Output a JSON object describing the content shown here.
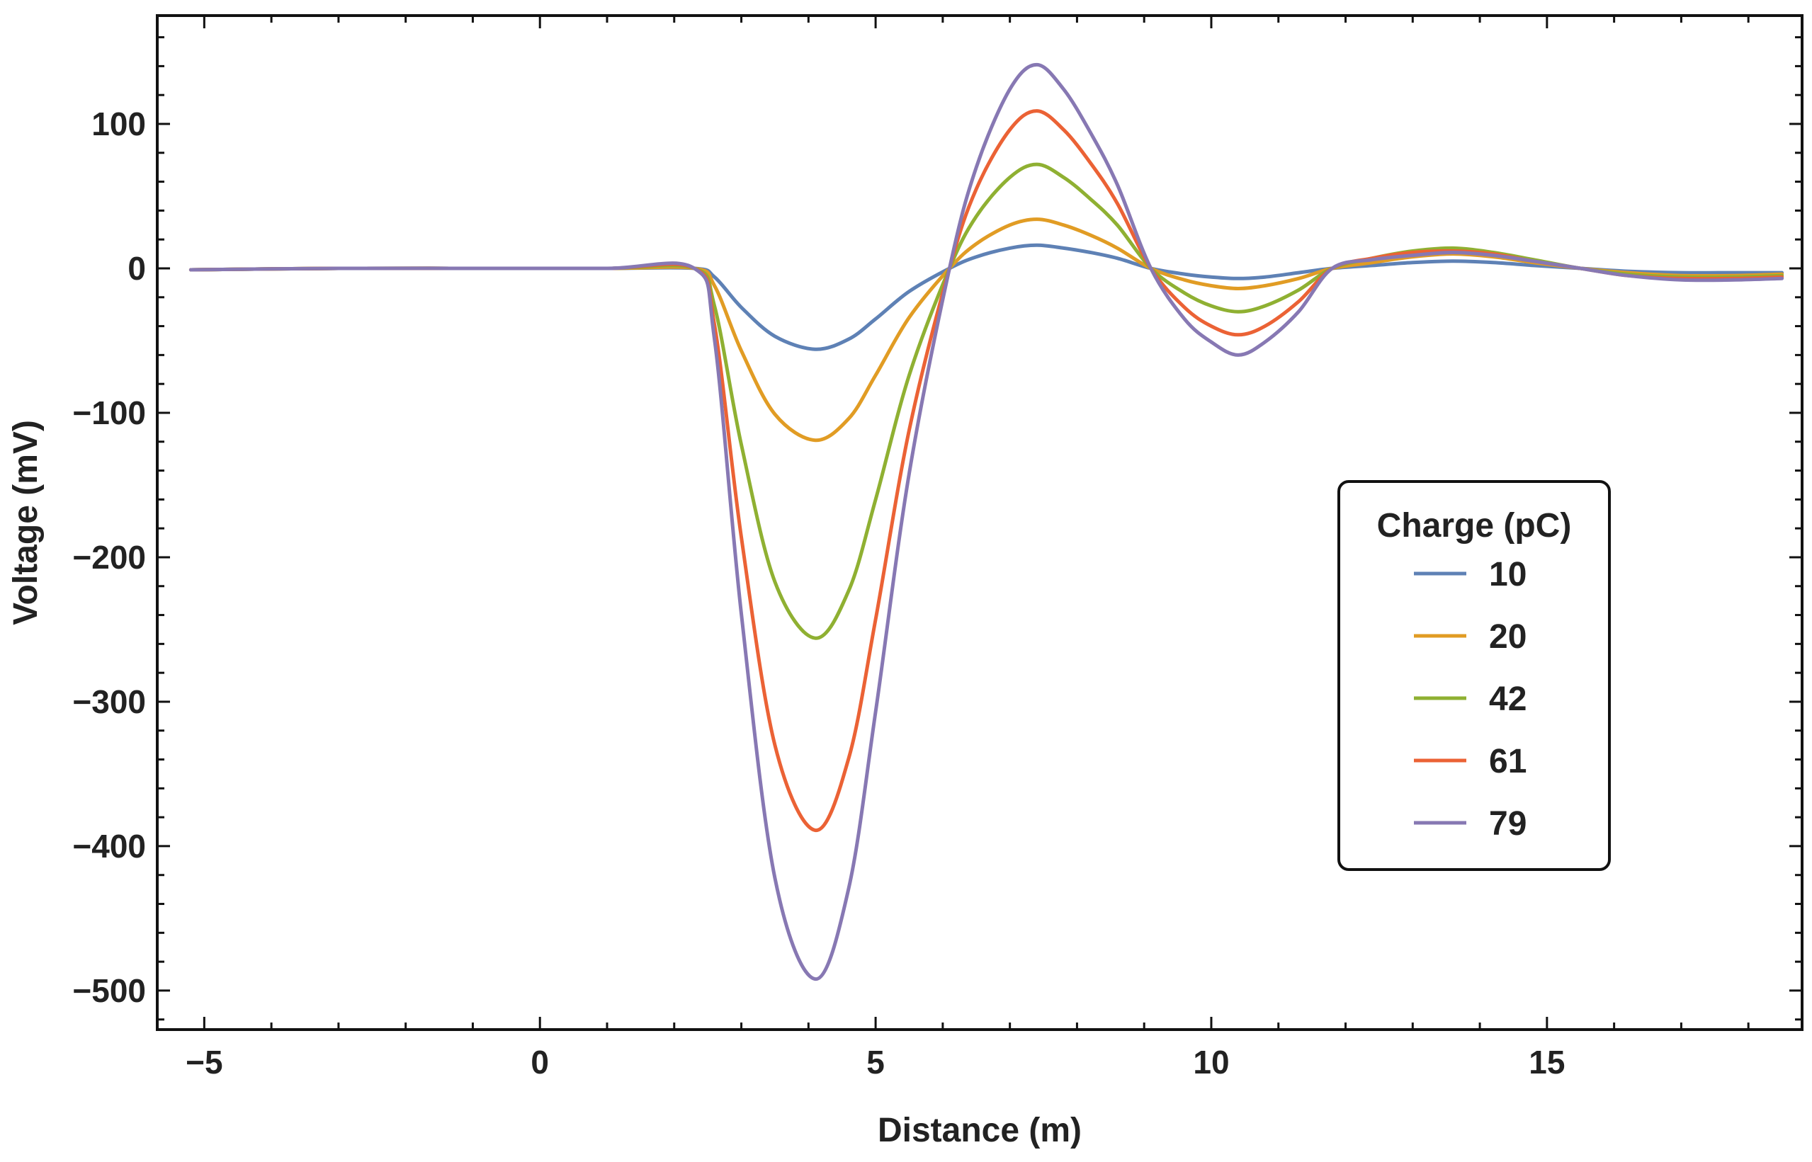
{
  "chart_data": {
    "type": "line",
    "xlabel": "Distance (m)",
    "ylabel": "Voltage (mV)",
    "xlim": [
      -5.7,
      18.8
    ],
    "ylim": [
      -527,
      175
    ],
    "x_ticks": [
      -5,
      0,
      5,
      10,
      15
    ],
    "x_tick_labels": [
      "-5",
      "0",
      "5",
      "10",
      "15"
    ],
    "y_ticks": [
      100,
      0,
      -100,
      -200,
      -300,
      -400,
      -500
    ],
    "y_tick_labels": [
      "100",
      "0",
      "-100",
      "-200",
      "-300",
      "-400",
      "-500"
    ],
    "grid": false,
    "legend": {
      "title": "Charge (pC)",
      "position": "right"
    },
    "x": [
      -5.2,
      -3,
      -1,
      1,
      2.3,
      2.6,
      3,
      3.5,
      4.1,
      4.6,
      5,
      5.5,
      6.1,
      6.5,
      7,
      7.4,
      7.8,
      8.2,
      8.6,
      9.1,
      9.6,
      10.0,
      10.4,
      10.8,
      11.3,
      11.8,
      12.4,
      13.0,
      13.6,
      14.2,
      14.8,
      15.5,
      16.2,
      17.0,
      17.8,
      18.5
    ],
    "series": [
      {
        "name": "10",
        "color": "#5e81b5",
        "values": [
          -1,
          0,
          0,
          0,
          0,
          -6,
          -27,
          -47,
          -56,
          -49,
          -35,
          -16,
          0,
          8,
          14,
          16,
          14,
          11,
          7,
          0,
          -4,
          -6,
          -7,
          -6,
          -3,
          0,
          2,
          4,
          5,
          4,
          2,
          0,
          -2,
          -3,
          -3,
          -3
        ]
      },
      {
        "name": "20",
        "color": "#e19c24",
        "values": [
          -1,
          0,
          0,
          0,
          0,
          -12,
          -57,
          -101,
          -119,
          -104,
          -74,
          -34,
          0,
          17,
          30,
          34,
          30,
          23,
          14,
          0,
          -8,
          -12,
          -14,
          -12,
          -7,
          0,
          4,
          8,
          10,
          8,
          4,
          0,
          -3,
          -5,
          -5,
          -4
        ]
      },
      {
        "name": "42",
        "color": "#8fb032",
        "values": [
          -1,
          0,
          0,
          0,
          0,
          -26,
          -122,
          -217,
          -256,
          -223,
          -160,
          -74,
          0,
          36,
          63,
          72,
          63,
          48,
          30,
          0,
          -17,
          -26,
          -30,
          -26,
          -15,
          0,
          7,
          12,
          14,
          11,
          6,
          0,
          -4,
          -6,
          -6,
          -5
        ]
      },
      {
        "name": "61",
        "color": "#eb6235",
        "values": [
          -1,
          0,
          0,
          0,
          0,
          -39,
          -186,
          -330,
          -389,
          -339,
          -243,
          -112,
          0,
          55,
          96,
          109,
          96,
          73,
          45,
          0,
          -27,
          -40,
          -46,
          -40,
          -23,
          0,
          7,
          11,
          12,
          10,
          5,
          0,
          -5,
          -7,
          -7,
          -6
        ]
      },
      {
        "name": "79",
        "color": "#8778b3",
        "values": [
          -1,
          0,
          0,
          0,
          0,
          -49,
          -239,
          -422,
          -492,
          -429,
          -307,
          -142,
          0,
          70,
          124,
          141,
          124,
          94,
          58,
          0,
          -35,
          -51,
          -60,
          -51,
          -30,
          0,
          6,
          9,
          11,
          9,
          5,
          0,
          -5,
          -8,
          -8,
          -7
        ]
      }
    ]
  }
}
